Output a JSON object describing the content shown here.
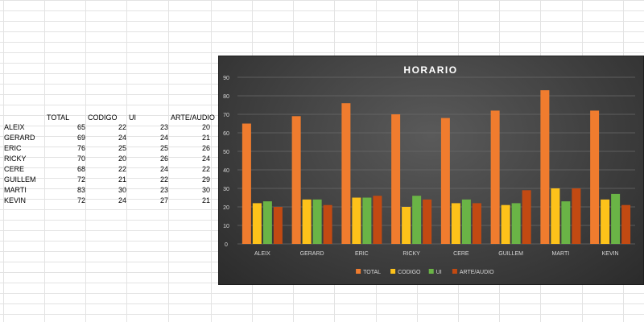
{
  "spreadsheet": {
    "headers": [
      "TOTAL",
      "CODIGO",
      "UI",
      "ARTE/AUDIO"
    ],
    "rows": [
      {
        "name": "ALEIX",
        "values": [
          "65",
          "22",
          "23",
          "20"
        ]
      },
      {
        "name": "GERARD",
        "values": [
          "69",
          "24",
          "24",
          "21"
        ]
      },
      {
        "name": "ERIC",
        "values": [
          "76",
          "25",
          "25",
          "26"
        ]
      },
      {
        "name": "RICKY",
        "values": [
          "70",
          "20",
          "26",
          "24"
        ]
      },
      {
        "name": "CERE",
        "values": [
          "68",
          "22",
          "24",
          "22"
        ]
      },
      {
        "name": "GUILLEM",
        "values": [
          "72",
          "21",
          "22",
          "29"
        ]
      },
      {
        "name": "MARTI",
        "values": [
          "83",
          "30",
          "23",
          "30"
        ]
      },
      {
        "name": "KEVIN",
        "values": [
          "72",
          "24",
          "27",
          "21"
        ]
      }
    ]
  },
  "chart_data": {
    "type": "bar",
    "title": "HORARIO",
    "categories": [
      "ALEIX",
      "GERARD",
      "ERIC",
      "RICKY",
      "CERE",
      "GUILLEM",
      "MARTI",
      "KEVIN"
    ],
    "series": [
      {
        "name": "TOTAL",
        "color": "#f07c2e",
        "values": [
          65,
          69,
          76,
          70,
          68,
          72,
          83,
          72
        ]
      },
      {
        "name": "CODIGO",
        "color": "#fdc21a",
        "values": [
          22,
          24,
          25,
          20,
          22,
          21,
          30,
          24
        ]
      },
      {
        "name": "UI",
        "color": "#6ab446",
        "values": [
          23,
          24,
          25,
          26,
          24,
          22,
          23,
          27
        ]
      },
      {
        "name": "ARTE/AUDIO",
        "color": "#c24a12",
        "values": [
          20,
          21,
          26,
          24,
          22,
          29,
          30,
          21
        ]
      }
    ],
    "ylim": [
      0,
      90
    ],
    "yticks": [
      0,
      10,
      20,
      30,
      40,
      50,
      60,
      70,
      80,
      90
    ],
    "grid": true,
    "legend": "bottom",
    "background": "dark"
  }
}
